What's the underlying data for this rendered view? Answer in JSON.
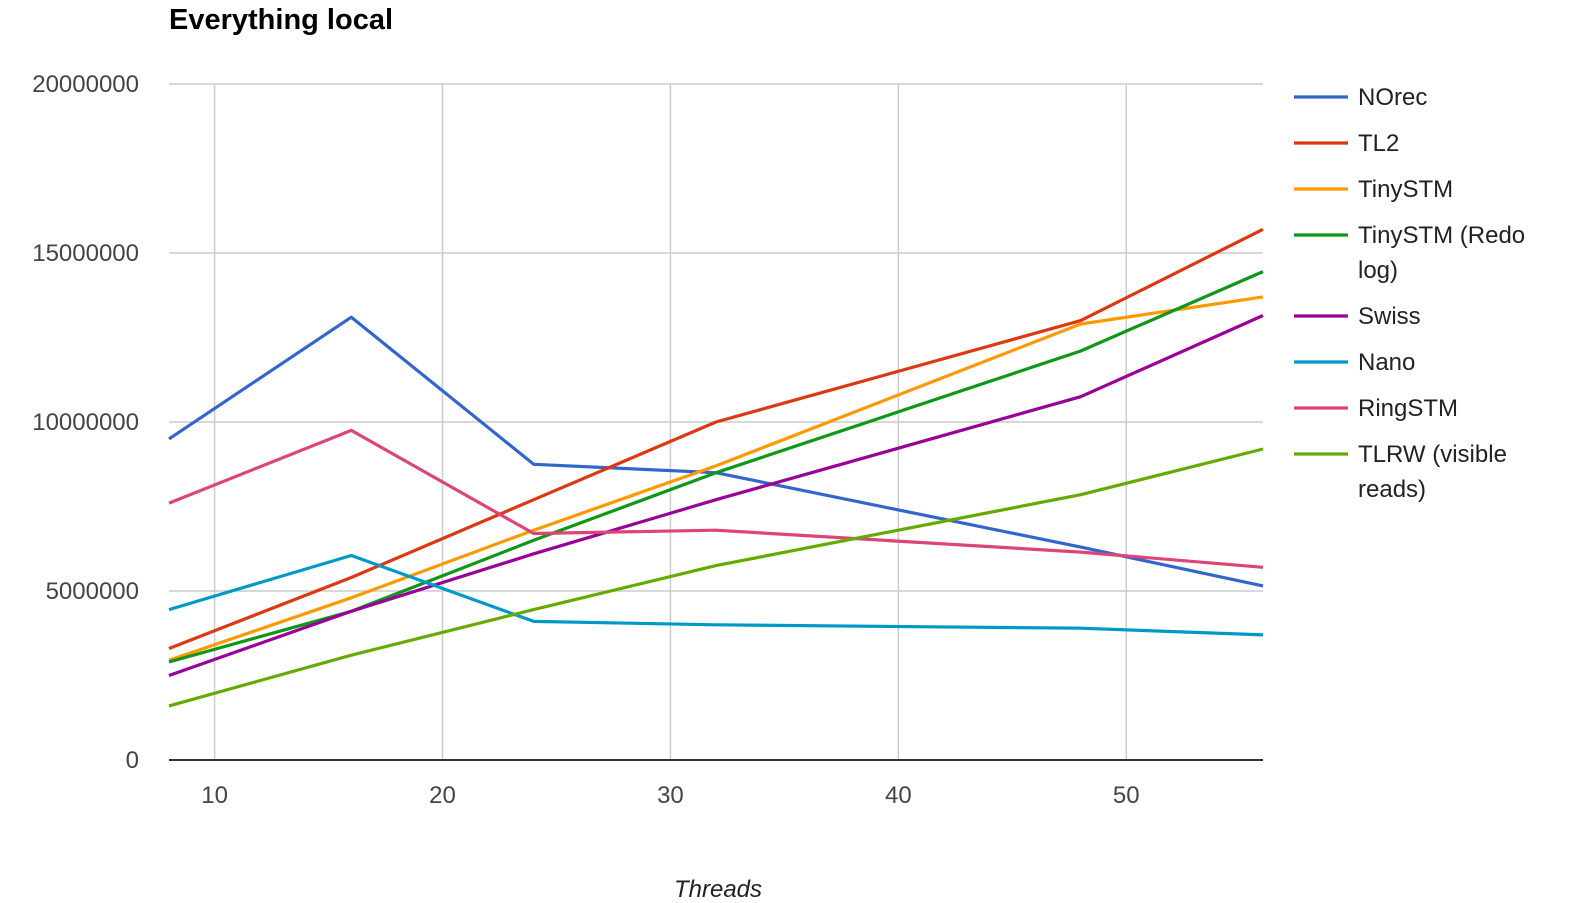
{
  "chart_data": {
    "type": "line",
    "title": "Everything local",
    "xlabel": "Threads",
    "ylabel": "",
    "xlim": [
      8,
      56
    ],
    "ylim": [
      0,
      20000000
    ],
    "x_ticks": [
      10,
      20,
      30,
      40,
      50
    ],
    "y_ticks": [
      0,
      5000000,
      10000000,
      15000000,
      20000000
    ],
    "x_tick_labels": [
      "10",
      "20",
      "30",
      "40",
      "50"
    ],
    "y_tick_labels": [
      "0",
      "5000000",
      "10000000",
      "15000000",
      "20000000"
    ],
    "grid": true,
    "legend_position": "right",
    "x": [
      8,
      16,
      24,
      32,
      48,
      56
    ],
    "series": [
      {
        "name": "NOrec",
        "legend_lines": [
          "NOrec"
        ],
        "color": "#3366cc",
        "values": [
          9500000,
          13100000,
          8750000,
          8500000,
          6300000,
          5150000
        ]
      },
      {
        "name": "TL2",
        "legend_lines": [
          "TL2"
        ],
        "color": "#dc3912",
        "values": [
          3300000,
          5400000,
          7700000,
          10000000,
          13000000,
          15700000
        ]
      },
      {
        "name": "TinySTM",
        "legend_lines": [
          "TinySTM"
        ],
        "color": "#ff9900",
        "values": [
          2950000,
          4800000,
          6800000,
          8700000,
          12900000,
          13700000
        ]
      },
      {
        "name": "TinySTM (Redo log)",
        "legend_lines": [
          "TinySTM (Redo",
          "log)"
        ],
        "color": "#109618",
        "values": [
          2900000,
          4400000,
          6500000,
          8500000,
          12100000,
          14450000
        ]
      },
      {
        "name": "Swiss",
        "legend_lines": [
          "Swiss"
        ],
        "color": "#990099",
        "values": [
          2500000,
          4400000,
          6100000,
          7700000,
          10750000,
          13150000
        ]
      },
      {
        "name": "Nano",
        "legend_lines": [
          "Nano"
        ],
        "color": "#0099c6",
        "values": [
          4450000,
          6050000,
          4100000,
          4000000,
          3900000,
          3700000
        ]
      },
      {
        "name": "RingSTM",
        "legend_lines": [
          "RingSTM"
        ],
        "color": "#dd4477",
        "values": [
          7600000,
          9750000,
          6700000,
          6800000,
          6150000,
          5700000
        ]
      },
      {
        "name": "TLRW (visible reads)",
        "legend_lines": [
          "TLRW (visible",
          "reads)"
        ],
        "color": "#66aa00",
        "values": [
          1600000,
          3100000,
          4450000,
          5750000,
          7850000,
          9200000
        ]
      }
    ]
  }
}
